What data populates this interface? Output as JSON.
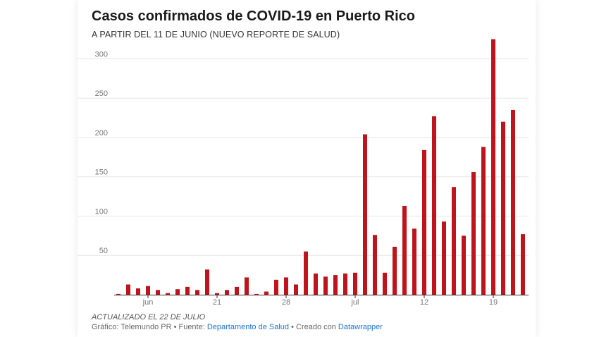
{
  "header": {
    "title": "Casos confirmados de COVID-19 en Puerto Rico",
    "subtitle": "A PARTIR DEL 11 DE JUNIO (NUEVO REPORTE DE SALUD)"
  },
  "footer": {
    "note": "ACTUALIZADO EL 22 DE JULIO",
    "credit_prefix": "Gráfico: Telemundo PR • Fuente: ",
    "source_link": "Departamento de Salud",
    "credit_middle": " • Creado con ",
    "tool_link": "Datawrapper"
  },
  "colors": {
    "bar": "#c0141c",
    "grid": "#e6e6e6",
    "axis": "#333333",
    "tick_text": "#777777"
  },
  "chart_data": {
    "type": "bar",
    "title": "Casos confirmados de COVID-19 en Puerto Rico",
    "subtitle": "A PARTIR DEL 11 DE JUNIO (NUEVO REPORTE DE SALUD)",
    "xlabel": "",
    "ylabel": "",
    "ylim": [
      0,
      330
    ],
    "yticks": [
      50,
      100,
      150,
      200,
      250,
      300
    ],
    "grid": true,
    "x_tick_labels": [
      {
        "index": 3,
        "label": "jun"
      },
      {
        "index": 10,
        "label": "21"
      },
      {
        "index": 17,
        "label": "28"
      },
      {
        "index": 24,
        "label": "jul"
      },
      {
        "index": 31,
        "label": "12"
      },
      {
        "index": 38,
        "label": "19"
      }
    ],
    "values": [
      1,
      13,
      8,
      11,
      6,
      2,
      7,
      10,
      6,
      32,
      2,
      6,
      10,
      22,
      1,
      4,
      19,
      22,
      13,
      55,
      27,
      23,
      25,
      27,
      28,
      204,
      76,
      28,
      61,
      113,
      84,
      184,
      227,
      93,
      137,
      75,
      156,
      188,
      325,
      220,
      235,
      77
    ]
  }
}
